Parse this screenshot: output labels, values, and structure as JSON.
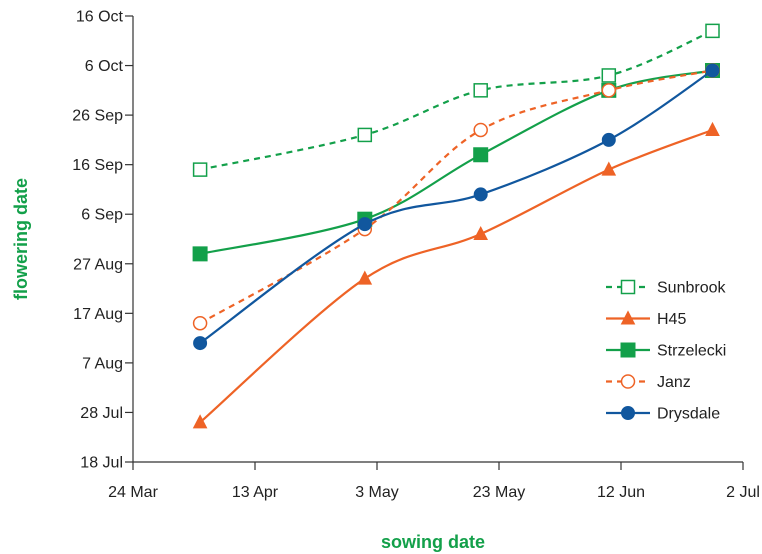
{
  "chart_data": {
    "type": "line",
    "xlabel": "sowing date",
    "ylabel": "flowering date",
    "x_ticks": [
      "24 Mar",
      "13 Apr",
      "3 May",
      "23 May",
      "12 Jun",
      "2 Jul"
    ],
    "y_ticks": [
      "18 Jul",
      "28 Jul",
      "7 Aug",
      "17 Aug",
      "27 Aug",
      "6 Sep",
      "16 Sep",
      "26 Sep",
      "6 Oct",
      "16 Oct"
    ],
    "x_range": [
      "24 Mar",
      "2 Jul"
    ],
    "y_range": [
      "18 Jul",
      "16 Oct"
    ],
    "legend_position": "lower-right",
    "grid": false,
    "colors": {
      "green": "#13a04a",
      "orange": "#ee6326",
      "blue": "#11579e",
      "axis": "#333333"
    },
    "series": [
      {
        "name": "Sunbrook",
        "color": "#13a04a",
        "dash": true,
        "marker": "square-open",
        "x": [
          "4 Apr",
          "1 May",
          "20 May",
          "10 Jun",
          "27 Jun"
        ],
        "y": [
          "15 Sep",
          "22 Sep",
          "1 Oct",
          "4 Oct",
          "13 Oct"
        ]
      },
      {
        "name": "H45",
        "color": "#ee6326",
        "dash": false,
        "marker": "triangle-filled",
        "x": [
          "4 Apr",
          "1 May",
          "20 May",
          "10 Jun",
          "27 Jun"
        ],
        "y": [
          "26 Jul",
          "24 Aug",
          "2 Sep",
          "15 Sep",
          "23 Sep"
        ]
      },
      {
        "name": "Strzelecki",
        "color": "#13a04a",
        "dash": false,
        "marker": "square-filled",
        "x": [
          "4 Apr",
          "1 May",
          "20 May",
          "10 Jun",
          "27 Jun"
        ],
        "y": [
          "29 Aug",
          "5 Sep",
          "18 Sep",
          "1 Oct",
          "5 Oct"
        ]
      },
      {
        "name": "Janz",
        "color": "#ee6326",
        "dash": true,
        "marker": "circle-open",
        "x": [
          "4 Apr",
          "1 May",
          "20 May",
          "10 Jun",
          "27 Jun"
        ],
        "y": [
          "15 Aug",
          "3 Sep",
          "23 Sep",
          "1 Oct",
          "5 Oct"
        ]
      },
      {
        "name": "Drysdale",
        "color": "#11579e",
        "dash": false,
        "marker": "circle-filled",
        "x": [
          "4 Apr",
          "1 May",
          "20 May",
          "10 Jun",
          "27 Jun"
        ],
        "y": [
          "11 Aug",
          "4 Sep",
          "10 Sep",
          "21 Sep",
          "5 Oct"
        ]
      }
    ]
  }
}
